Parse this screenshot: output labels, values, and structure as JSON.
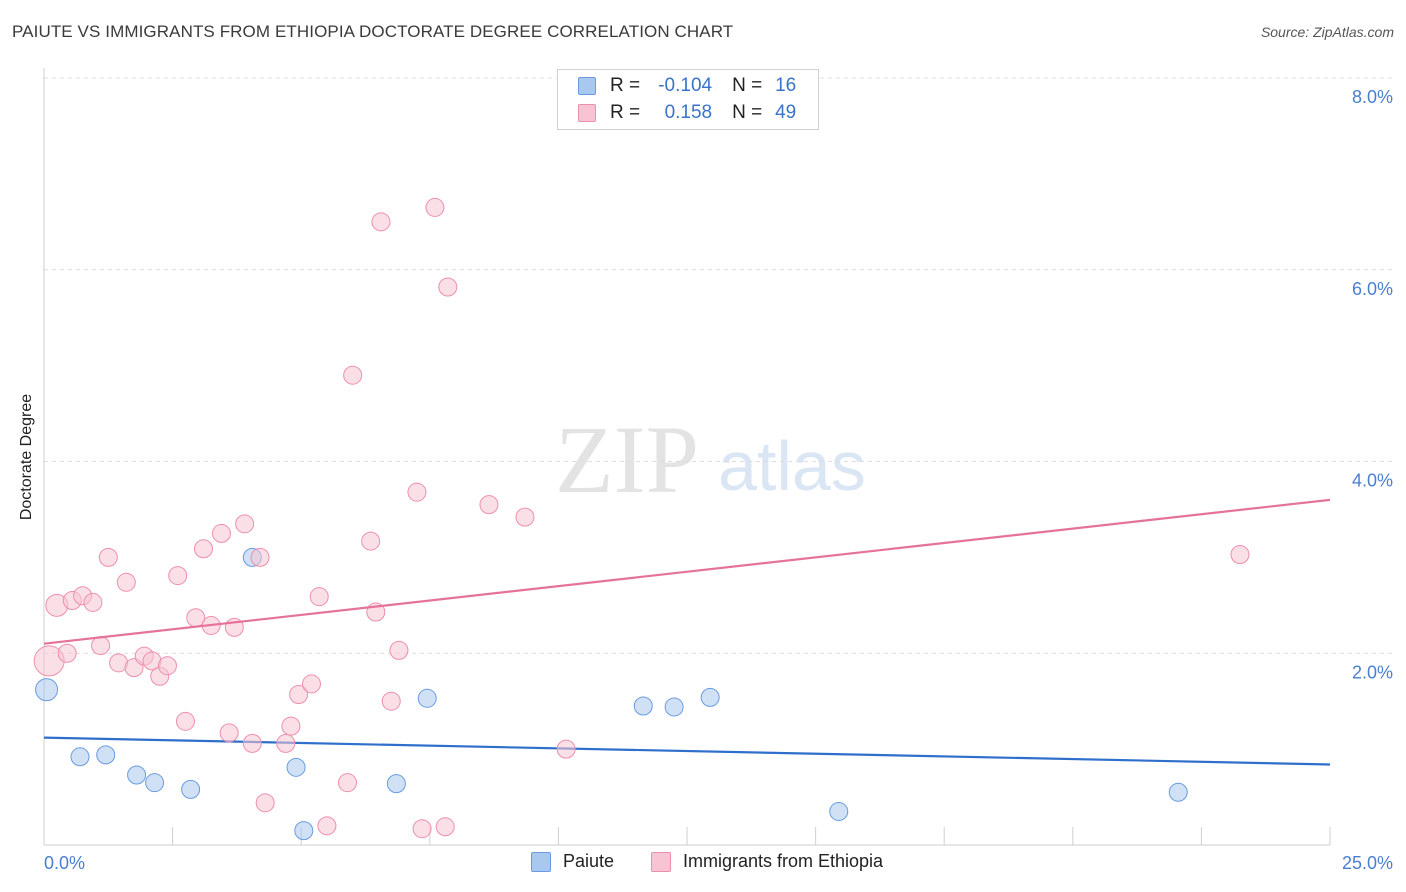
{
  "title": "PAIUTE VS IMMIGRANTS FROM ETHIOPIA DOCTORATE DEGREE CORRELATION CHART",
  "source": "Source: ZipAtlas.com",
  "watermark": {
    "zip": "ZIP",
    "atlas": "atlas"
  },
  "legend_top": {
    "rows": [
      {
        "r_label": "R =",
        "r_value": "-0.104",
        "n_label": "N =",
        "n_value": "16",
        "color": "#a9c8ef",
        "border": "#6a9be0"
      },
      {
        "r_label": "R =",
        "r_value": "0.158",
        "n_label": "N =",
        "n_value": "49",
        "color": "#f8c4d4",
        "border": "#ec8fad"
      }
    ]
  },
  "legend_bottom": {
    "items": [
      {
        "label": "Paiute",
        "color": "#a9c8ef",
        "border": "#6a9be0"
      },
      {
        "label": "Immigrants from Ethiopia",
        "color": "#f8c4d4",
        "border": "#ec8fad"
      }
    ]
  },
  "chart_data": {
    "type": "scatter",
    "title": "PAIUTE VS IMMIGRANTS FROM ETHIOPIA DOCTORATE DEGREE CORRELATION CHART",
    "xlabel": "",
    "ylabel": "Doctorate Degree",
    "xlim": [
      0,
      25
    ],
    "ylim": [
      0,
      8.0
    ],
    "x_tick_labels": [
      "0.0%",
      "25.0%"
    ],
    "y_ticks": [
      2.0,
      4.0,
      6.0,
      8.0
    ],
    "y_tick_labels": [
      "2.0%",
      "4.0%",
      "6.0%",
      "8.0%"
    ],
    "grid": "horizontal dashed",
    "legend_position": "top-center and bottom",
    "series": [
      {
        "name": "Paiute",
        "color": "#a9c8ef",
        "stroke": "#6a9be0",
        "line_color": "#2f6fcb",
        "trend": [
          [
            0,
            1.12
          ],
          [
            25,
            0.84
          ]
        ],
        "points": [
          [
            0.05,
            1.62,
            11
          ],
          [
            0.7,
            0.92,
            9
          ],
          [
            1.2,
            0.94,
            9
          ],
          [
            1.8,
            0.73,
            9
          ],
          [
            2.15,
            0.65,
            9
          ],
          [
            2.85,
            0.58,
            9
          ],
          [
            4.05,
            3.0,
            9
          ],
          [
            4.9,
            0.81,
            9
          ],
          [
            5.05,
            0.15,
            9
          ],
          [
            6.85,
            0.64,
            9
          ],
          [
            7.45,
            1.53,
            9
          ],
          [
            11.65,
            1.45,
            9
          ],
          [
            12.25,
            1.44,
            9
          ],
          [
            12.95,
            1.54,
            9
          ],
          [
            15.45,
            0.35,
            9
          ],
          [
            22.05,
            0.55,
            9
          ]
        ]
      },
      {
        "name": "Immigrants from Ethiopia",
        "color": "#f8c4d4",
        "stroke": "#ec8fad",
        "line_color": "#e57299",
        "trend": [
          [
            0,
            2.1
          ],
          [
            25,
            3.6
          ]
        ],
        "points": [
          [
            0.1,
            1.92,
            15
          ],
          [
            0.25,
            2.5,
            11
          ],
          [
            0.45,
            2.0,
            9
          ],
          [
            0.55,
            2.55,
            9
          ],
          [
            0.75,
            2.6,
            9
          ],
          [
            0.95,
            2.53,
            9
          ],
          [
            1.1,
            2.08,
            9
          ],
          [
            1.25,
            3.0,
            9
          ],
          [
            1.45,
            1.9,
            9
          ],
          [
            1.6,
            2.74,
            9
          ],
          [
            1.75,
            1.85,
            9
          ],
          [
            1.95,
            1.97,
            9
          ],
          [
            2.1,
            1.92,
            9
          ],
          [
            2.25,
            1.76,
            9
          ],
          [
            2.4,
            1.87,
            9
          ],
          [
            2.6,
            2.81,
            9
          ],
          [
            2.75,
            1.29,
            9
          ],
          [
            2.95,
            2.37,
            9
          ],
          [
            3.1,
            3.09,
            9
          ],
          [
            3.25,
            2.29,
            9
          ],
          [
            3.45,
            3.25,
            9
          ],
          [
            3.6,
            1.17,
            9
          ],
          [
            3.7,
            2.27,
            9
          ],
          [
            3.9,
            3.35,
            9
          ],
          [
            4.05,
            1.06,
            9
          ],
          [
            4.2,
            3.0,
            9
          ],
          [
            4.3,
            0.44,
            9
          ],
          [
            4.7,
            1.06,
            9
          ],
          [
            4.8,
            1.24,
            9
          ],
          [
            4.95,
            1.57,
            9
          ],
          [
            5.2,
            1.68,
            9
          ],
          [
            5.35,
            2.59,
            9
          ],
          [
            5.5,
            0.2,
            9
          ],
          [
            5.9,
            0.65,
            9
          ],
          [
            6.0,
            4.9,
            9
          ],
          [
            6.35,
            3.17,
            9
          ],
          [
            6.45,
            2.43,
            9
          ],
          [
            6.55,
            6.5,
            9
          ],
          [
            6.75,
            1.5,
            9
          ],
          [
            6.9,
            2.03,
            9
          ],
          [
            7.25,
            3.68,
            9
          ],
          [
            7.35,
            0.17,
            9
          ],
          [
            7.6,
            6.65,
            9
          ],
          [
            7.8,
            0.19,
            9
          ],
          [
            7.85,
            5.82,
            9
          ],
          [
            8.65,
            3.55,
            9
          ],
          [
            9.35,
            3.42,
            9
          ],
          [
            10.15,
            1.0,
            9
          ],
          [
            23.25,
            3.03,
            9
          ]
        ]
      }
    ]
  }
}
